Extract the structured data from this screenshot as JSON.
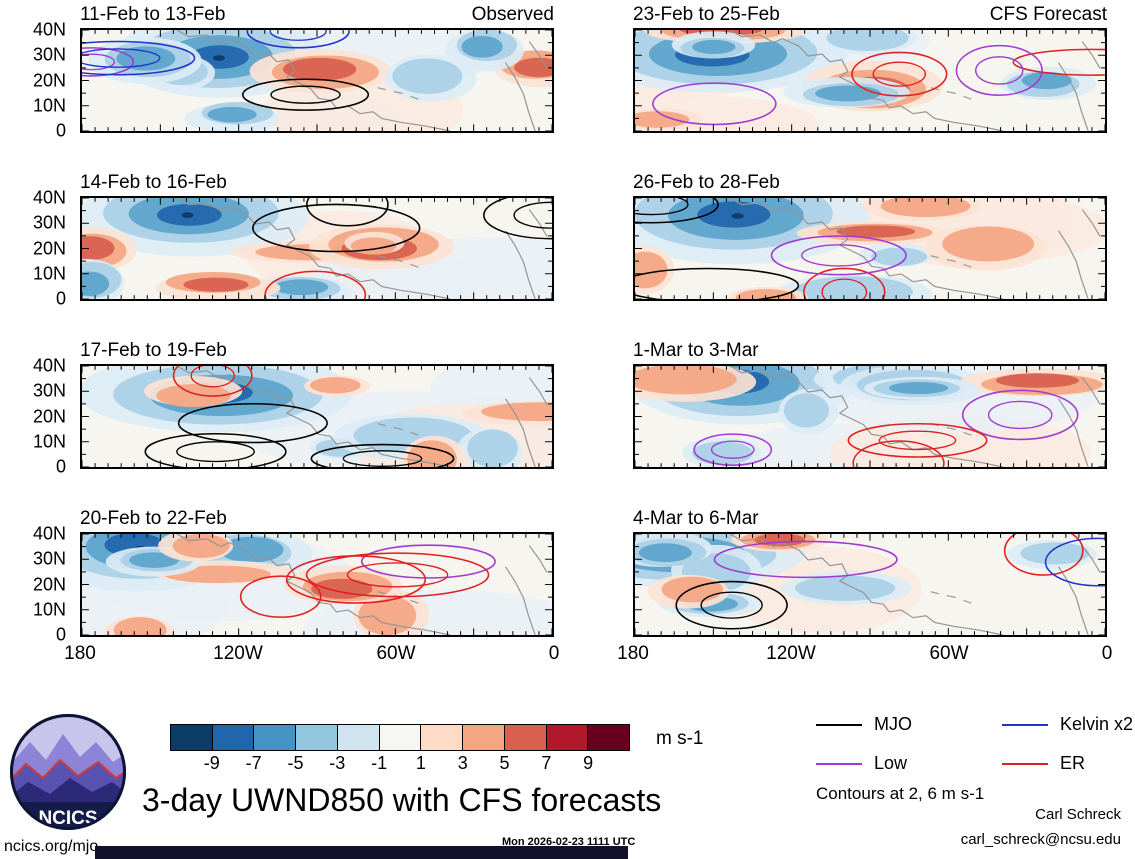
{
  "page": {
    "main_title": "3-day UWND850 with CFS forecasts",
    "site_link": "ncics.org/mjo",
    "generated_timestamp": "Mon 2026-02-23 1111 UTC",
    "credit_name": "Carl Schreck",
    "credit_email": "carl_schreck@ncsu.edu",
    "contours_note": "Contours at 2, 6 m s-1",
    "logo_text": "NCICS"
  },
  "columns": [
    {
      "header": "Observed",
      "panels": [
        {
          "title": "11-Feb to 13-Feb"
        },
        {
          "title": "14-Feb to 16-Feb"
        },
        {
          "title": "17-Feb to 19-Feb"
        },
        {
          "title": "20-Feb to 22-Feb"
        }
      ]
    },
    {
      "header": "CFS Forecast",
      "panels": [
        {
          "title": "23-Feb to 25-Feb"
        },
        {
          "title": "26-Feb to 28-Feb"
        },
        {
          "title": "1-Mar to 3-Mar"
        },
        {
          "title": "4-Mar to 6-Mar"
        }
      ]
    }
  ],
  "axes": {
    "y_ticks": [
      "40N",
      "30N",
      "20N",
      "10N",
      "0"
    ],
    "x_ticks": [
      "180",
      "120W",
      "60W",
      "0"
    ]
  },
  "colorbar": {
    "ticks": [
      "-9",
      "-7",
      "-5",
      "-3",
      "-1",
      "1",
      "3",
      "5",
      "7",
      "9"
    ],
    "units": "m s-1",
    "colors": [
      "#0b3d66",
      "#2166ac",
      "#4393c3",
      "#92c5de",
      "#d1e5f0",
      "#f7f6f2",
      "#fddbc7",
      "#f4a582",
      "#d6604d",
      "#b2182b",
      "#67001f"
    ]
  },
  "legend": {
    "items": [
      {
        "label": "MJO",
        "color": "#000000"
      },
      {
        "label": "Kelvin x2",
        "color": "#2233cc"
      },
      {
        "label": "Low",
        "color": "#a03ad0"
      },
      {
        "label": "ER",
        "color": "#e02020"
      }
    ]
  },
  "chart_data": {
    "type": "heatmap",
    "title": "3-day UWND850 with CFS forecasts",
    "variable": "850-hPa zonal wind anomaly, shaded filled contours with wave-filtered overlays",
    "units": "m s-1",
    "fill_levels": [
      -9,
      -7,
      -5,
      -3,
      -1,
      1,
      3,
      5,
      7,
      9
    ],
    "contour_levels": [
      2,
      6
    ],
    "x_tick_labels": [
      "180",
      "120W",
      "60W",
      "0"
    ],
    "y_tick_labels": [
      "0",
      "10N",
      "20N",
      "30N",
      "40N"
    ],
    "columns": [
      {
        "header": "Observed",
        "panels": [
          "11-Feb to 13-Feb",
          "14-Feb to 16-Feb",
          "17-Feb to 19-Feb",
          "20-Feb to 22-Feb"
        ]
      },
      {
        "header": "CFS Forecast",
        "panels": [
          "23-Feb to 25-Feb",
          "26-Feb to 28-Feb",
          "1-Mar to 3-Mar",
          "4-Mar to 6-Mar"
        ]
      }
    ],
    "overlay_series": [
      {
        "name": "MJO",
        "color": "#000000"
      },
      {
        "name": "Kelvin x2",
        "color": "#2233cc"
      },
      {
        "name": "Low",
        "color": "#a03ad0"
      },
      {
        "name": "ER",
        "color": "#e02020"
      }
    ],
    "legend_position": "bottom-right",
    "colorbar_position": "bottom-left",
    "timestamp": "Mon 2026-02-23 1111 UTC"
  }
}
